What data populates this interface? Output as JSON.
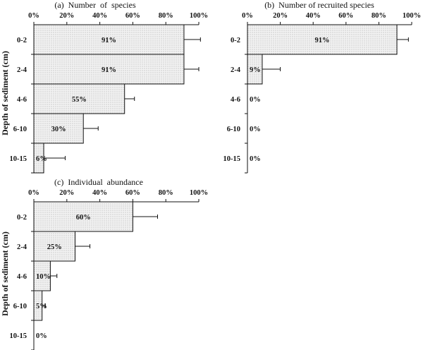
{
  "chart_data": [
    {
      "type": "bar",
      "orientation": "horizontal",
      "title": "(a)  Number  of  species",
      "ylabel": "Depth of sediment (cm)",
      "categories": [
        "0-2",
        "2-4",
        "4-6",
        "6-10",
        "10-15"
      ],
      "values": [
        91,
        91,
        55,
        30,
        6
      ],
      "errors": [
        10,
        9,
        6,
        9,
        13
      ],
      "value_labels": [
        "91%",
        "91%",
        "55%",
        "30%",
        "6%"
      ],
      "xticks": [
        "0%",
        "20%",
        "40%",
        "60%",
        "80%",
        "100%"
      ],
      "xlim": [
        0,
        100
      ],
      "grid": false,
      "legend": "none",
      "bar_fill": "dotted light gray"
    },
    {
      "type": "bar",
      "orientation": "horizontal",
      "title": "(b)  Number of recruited species",
      "ylabel": "",
      "categories": [
        "0-2",
        "2-4",
        "4-6",
        "6-10",
        "10-15"
      ],
      "values": [
        91,
        9,
        0,
        0,
        0
      ],
      "errors": [
        7,
        11,
        0,
        0,
        0
      ],
      "value_labels": [
        "91%",
        "9%",
        "0%",
        "0%",
        "0%"
      ],
      "xticks": [
        "0%",
        "20%",
        "40%",
        "60%",
        "80%",
        "100%"
      ],
      "xlim": [
        0,
        100
      ],
      "grid": false,
      "legend": "none",
      "bar_fill": "dotted light gray"
    },
    {
      "type": "bar",
      "orientation": "horizontal",
      "title": "(c)  Individual  abundance",
      "ylabel": "Depth of sediment (cm)",
      "categories": [
        "0-2",
        "2-4",
        "4-6",
        "6-10",
        "10-15"
      ],
      "values": [
        60,
        25,
        10,
        5,
        0
      ],
      "errors": [
        15,
        9,
        4,
        2,
        0
      ],
      "value_labels": [
        "60%",
        "25%",
        "10%",
        "5%",
        "0%"
      ],
      "xticks": [
        "0%",
        "20%",
        "40%",
        "60%",
        "80%",
        "100%"
      ],
      "xlim": [
        0,
        100
      ],
      "grid": false,
      "legend": "none",
      "bar_fill": "dotted light gray"
    }
  ]
}
